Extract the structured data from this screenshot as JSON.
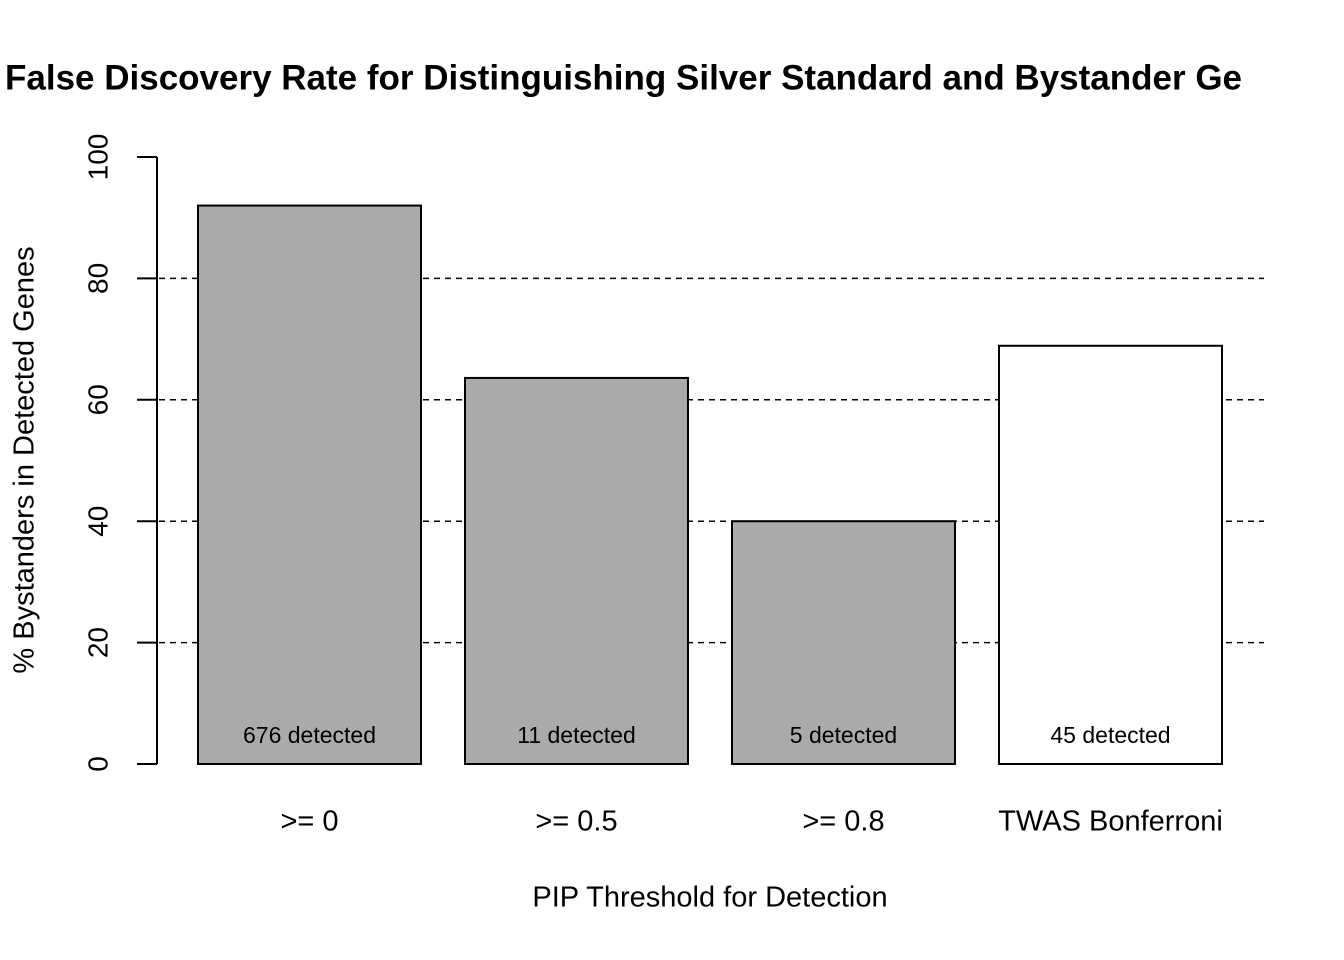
{
  "chart_data": {
    "type": "bar",
    "title": "False Discovery Rate for Distinguishing Silver Standard and Bystander Ge",
    "xlabel": "PIP Threshold for Detection",
    "ylabel": "% Bystanders in Detected Genes",
    "categories": [
      ">= 0",
      ">= 0.5",
      ">= 0.8",
      "TWAS Bonferroni"
    ],
    "values": [
      92,
      63.6,
      40,
      68.9
    ],
    "colors": [
      "#aaaaaa",
      "#aaaaaa",
      "#aaaaaa",
      "#ffffff"
    ],
    "annotations": [
      "676 detected",
      "11 detected",
      "5 detected",
      "45 detected"
    ],
    "ylim": [
      0,
      100
    ],
    "yticks": [
      0,
      20,
      40,
      60,
      80,
      100
    ],
    "grid": true
  }
}
